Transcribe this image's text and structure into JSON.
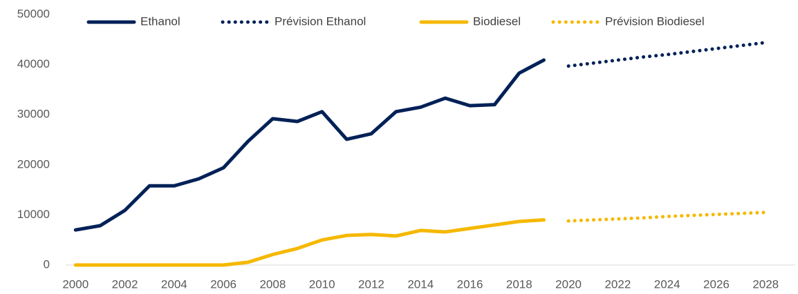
{
  "chart_data": {
    "type": "line",
    "x": [
      2000,
      2001,
      2002,
      2003,
      2004,
      2005,
      2006,
      2007,
      2008,
      2009,
      2010,
      2011,
      2012,
      2013,
      2014,
      2015,
      2016,
      2017,
      2018,
      2019,
      2020,
      2021,
      2022,
      2023,
      2024,
      2025,
      2026,
      2027,
      2028
    ],
    "series": [
      {
        "name": "Ethanol",
        "color": "#002157",
        "style": "solid",
        "values": [
          7000,
          7850,
          10900,
          15800,
          15800,
          17200,
          19400,
          24700,
          29200,
          28650,
          30600,
          25100,
          26200,
          30600,
          31500,
          33300,
          31800,
          32000,
          38300,
          40900,
          null,
          null,
          null,
          null,
          null,
          null,
          null,
          null,
          null
        ]
      },
      {
        "name": "Prévision Ethanol",
        "color": "#002157",
        "style": "dotted",
        "values": [
          null,
          null,
          null,
          null,
          null,
          null,
          null,
          null,
          null,
          null,
          null,
          null,
          null,
          null,
          null,
          null,
          null,
          null,
          null,
          null,
          39700,
          40300,
          40900,
          41500,
          42000,
          42600,
          43200,
          43800,
          44400
        ]
      },
      {
        "name": "Biodiesel",
        "color": "#f5b800",
        "style": "solid",
        "values": [
          0,
          0,
          0,
          0,
          0,
          0,
          0,
          550,
          2100,
          3300,
          5000,
          5900,
          6100,
          5800,
          6900,
          6600,
          7300,
          8000,
          8700,
          9000,
          null,
          null,
          null,
          null,
          null,
          null,
          null,
          null,
          null
        ]
      },
      {
        "name": "Prévision Biodiesel",
        "color": "#f5b800",
        "style": "dotted",
        "values": [
          null,
          null,
          null,
          null,
          null,
          null,
          null,
          null,
          null,
          null,
          null,
          null,
          null,
          null,
          null,
          null,
          null,
          null,
          null,
          null,
          8800,
          9000,
          9200,
          9400,
          9700,
          9900,
          10100,
          10300,
          10500
        ]
      }
    ],
    "xlim": [
      1999.6,
      2029.2
    ],
    "xticks": [
      2000,
      2002,
      2004,
      2006,
      2008,
      2010,
      2012,
      2014,
      2016,
      2018,
      2020,
      2022,
      2024,
      2026,
      2028
    ],
    "ylim": [
      0,
      50000
    ],
    "yticks": [
      0,
      10000,
      20000,
      30000,
      40000,
      50000
    ],
    "grid": false,
    "legend": "top"
  }
}
